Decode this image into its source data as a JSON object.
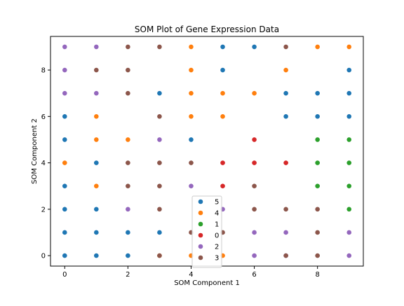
{
  "chart_data": {
    "type": "scatter",
    "title": "SOM Plot of Gene Expression Data",
    "xlabel": "SOM Component 1",
    "ylabel": "SOM Component 2",
    "xlim": [
      -0.45,
      9.45
    ],
    "ylim": [
      -0.45,
      9.45
    ],
    "xticks": [
      0,
      2,
      4,
      6,
      8
    ],
    "yticks": [
      0,
      2,
      4,
      6,
      8
    ],
    "grid": false,
    "legend_position": "bottom-center",
    "series": [
      {
        "name": "5",
        "color": "#1f77b4",
        "points": [
          [
            0,
            0
          ],
          [
            1,
            0
          ],
          [
            2,
            0
          ],
          [
            0,
            1
          ],
          [
            1,
            1
          ],
          [
            2,
            1
          ],
          [
            3,
            1
          ],
          [
            0,
            2
          ],
          [
            1,
            2
          ],
          [
            0,
            3
          ],
          [
            1,
            4
          ],
          [
            0,
            5
          ],
          [
            4,
            5
          ],
          [
            0,
            6
          ],
          [
            7,
            6
          ],
          [
            8,
            6
          ],
          [
            9,
            6
          ],
          [
            3,
            7
          ],
          [
            7,
            7
          ],
          [
            8,
            7
          ],
          [
            9,
            7
          ],
          [
            5,
            8
          ],
          [
            9,
            8
          ],
          [
            5,
            9
          ],
          [
            6,
            9
          ]
        ]
      },
      {
        "name": "4",
        "color": "#ff7f0e",
        "points": [
          [
            3,
            0
          ],
          [
            4,
            0
          ],
          [
            5,
            0
          ],
          [
            1,
            3
          ],
          [
            0,
            4
          ],
          [
            1,
            5
          ],
          [
            2,
            5
          ],
          [
            1,
            6
          ],
          [
            4,
            6
          ],
          [
            5,
            6
          ],
          [
            4,
            7
          ],
          [
            5,
            7
          ],
          [
            6,
            7
          ],
          [
            4,
            8
          ],
          [
            7,
            8
          ],
          [
            4,
            9
          ],
          [
            8,
            9
          ],
          [
            9,
            9
          ]
        ]
      },
      {
        "name": "1",
        "color": "#2ca02c",
        "points": [
          [
            9,
            2
          ],
          [
            8,
            3
          ],
          [
            9,
            3
          ],
          [
            8,
            4
          ],
          [
            9,
            4
          ],
          [
            8,
            5
          ],
          [
            9,
            5
          ]
        ]
      },
      {
        "name": "0",
        "color": "#d62728",
        "points": [
          [
            5,
            3
          ],
          [
            5,
            4
          ],
          [
            6,
            4
          ],
          [
            7,
            4
          ],
          [
            6,
            5
          ]
        ]
      },
      {
        "name": "2",
        "color": "#9467bd",
        "points": [
          [
            6,
            0
          ],
          [
            7,
            0
          ],
          [
            9,
            0
          ],
          [
            6,
            1
          ],
          [
            7,
            1
          ],
          [
            9,
            1
          ],
          [
            2,
            2
          ],
          [
            5,
            2
          ],
          [
            4,
            3
          ],
          [
            3,
            5
          ],
          [
            0,
            7
          ],
          [
            1,
            7
          ],
          [
            0,
            8
          ],
          [
            0,
            9
          ],
          [
            1,
            9
          ]
        ]
      },
      {
        "name": "3",
        "color": "#8c564b",
        "points": [
          [
            3,
            0
          ],
          [
            7,
            0
          ],
          [
            8,
            0
          ],
          [
            4,
            1
          ],
          [
            5,
            1
          ],
          [
            8,
            1
          ],
          [
            3,
            2
          ],
          [
            6,
            2
          ],
          [
            7,
            2
          ],
          [
            8,
            2
          ],
          [
            2,
            3
          ],
          [
            3,
            3
          ],
          [
            6,
            3
          ],
          [
            2,
            4
          ],
          [
            3,
            4
          ],
          [
            4,
            4
          ],
          [
            3,
            6
          ],
          [
            2,
            7
          ],
          [
            1,
            8
          ],
          [
            2,
            8
          ],
          [
            2,
            9
          ],
          [
            3,
            9
          ],
          [
            7,
            9
          ]
        ]
      }
    ]
  }
}
